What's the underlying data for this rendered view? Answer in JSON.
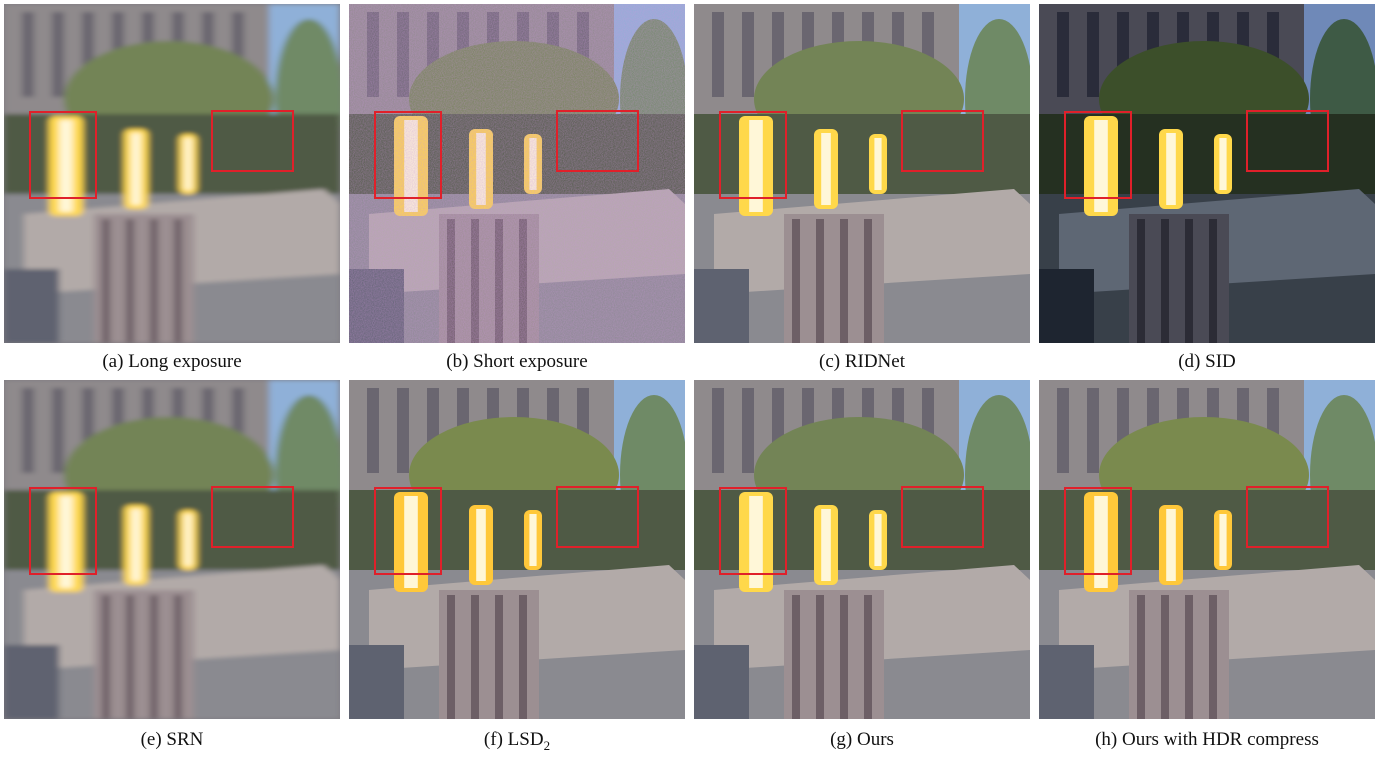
{
  "figure": {
    "panels": [
      {
        "id": "a",
        "caption": "(a) Long exposure",
        "variant": "blur"
      },
      {
        "id": "b",
        "caption": "(b) Short exposure",
        "variant": "noisy"
      },
      {
        "id": "c",
        "caption": "(c) RIDNet",
        "variant": "denoised-soft"
      },
      {
        "id": "d",
        "caption": "(d) SID",
        "variant": "dark-contrast"
      },
      {
        "id": "e",
        "caption": "(e) SRN",
        "variant": "blur"
      },
      {
        "id": "f",
        "caption": "(f) LSD",
        "caption_sub": "2",
        "variant": "clean-warm"
      },
      {
        "id": "g",
        "caption": "(g) Ours",
        "variant": "clean"
      },
      {
        "id": "h",
        "caption": "(h) Ours with HDR compress",
        "variant": "clean-saturated"
      }
    ],
    "highlight_box_color": "#e0202a",
    "lamp_color": "#ffd84a",
    "sky_color": "#8fb0d8"
  }
}
